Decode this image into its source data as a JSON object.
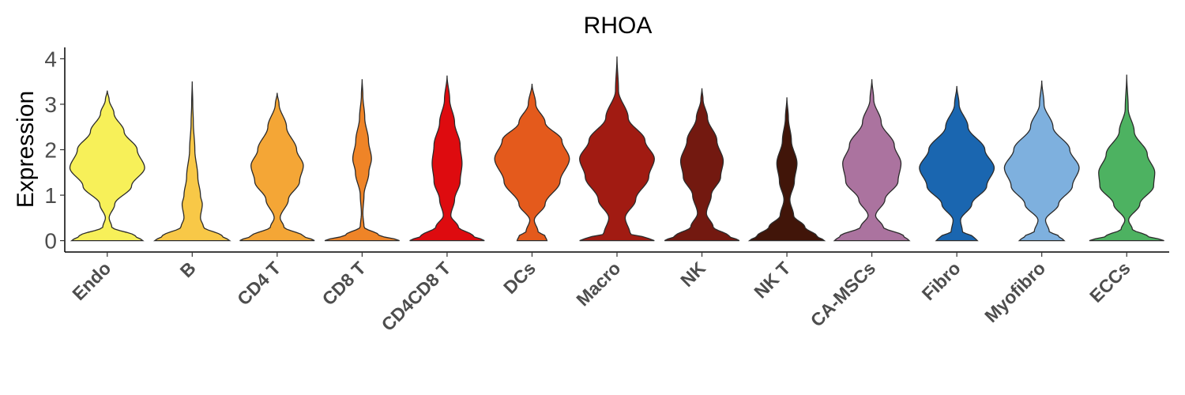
{
  "chart_data": {
    "type": "violin",
    "title": "RHOA",
    "xlabel": "",
    "ylabel": "Expression",
    "ylim": [
      -0.25,
      4.25
    ],
    "yticks": [
      0,
      1,
      2,
      3,
      4
    ],
    "grid": false,
    "legend": "none",
    "categories": [
      "Endo",
      "B",
      "CD4 T",
      "CD8 T",
      "CD4CD8 T",
      "DCs",
      "Macro",
      "NK",
      "NK T",
      "CA-MSCs",
      "Fibro",
      "Myofibro",
      "ECCs"
    ],
    "series": [
      {
        "category": "Endo",
        "color": "#f7f059",
        "ymax": 3.3,
        "profile": [
          [
            0,
            0.95
          ],
          [
            0.1,
            0.75
          ],
          [
            0.3,
            0.12
          ],
          [
            0.5,
            0.05
          ],
          [
            0.8,
            0.2
          ],
          [
            1.2,
            0.65
          ],
          [
            1.6,
            1.0
          ],
          [
            2.0,
            0.8
          ],
          [
            2.4,
            0.45
          ],
          [
            2.8,
            0.18
          ],
          [
            3.1,
            0.05
          ],
          [
            3.3,
            0
          ]
        ]
      },
      {
        "category": "B",
        "color": "#f8c847",
        "ymax": 3.5,
        "profile": [
          [
            0,
            1.0
          ],
          [
            0.1,
            0.8
          ],
          [
            0.3,
            0.3
          ],
          [
            0.5,
            0.22
          ],
          [
            0.8,
            0.27
          ],
          [
            1.0,
            0.22
          ],
          [
            1.4,
            0.15
          ],
          [
            2.0,
            0.07
          ],
          [
            2.6,
            0.03
          ],
          [
            3.0,
            0.015
          ],
          [
            3.5,
            0
          ]
        ]
      },
      {
        "category": "CD4 T",
        "color": "#f4a636",
        "ymax": 3.25,
        "profile": [
          [
            0,
            1.0
          ],
          [
            0.1,
            0.7
          ],
          [
            0.3,
            0.18
          ],
          [
            0.5,
            0.08
          ],
          [
            0.9,
            0.3
          ],
          [
            1.3,
            0.6
          ],
          [
            1.65,
            0.7
          ],
          [
            2.0,
            0.52
          ],
          [
            2.5,
            0.25
          ],
          [
            3.0,
            0.05
          ],
          [
            3.25,
            0
          ]
        ]
      },
      {
        "category": "CD8 T",
        "color": "#ef8427",
        "ymax": 3.55,
        "profile": [
          [
            0,
            1.0
          ],
          [
            0.12,
            0.45
          ],
          [
            0.3,
            0.05
          ],
          [
            0.6,
            0.02
          ],
          [
            1.0,
            0.05
          ],
          [
            1.5,
            0.18
          ],
          [
            1.8,
            0.25
          ],
          [
            2.2,
            0.17
          ],
          [
            2.7,
            0.07
          ],
          [
            3.2,
            0.02
          ],
          [
            3.55,
            0
          ]
        ]
      },
      {
        "category": "CD4CD8 T",
        "color": "#de0b0f",
        "ymax": 3.63,
        "profile": [
          [
            0,
            1.0
          ],
          [
            0.1,
            0.7
          ],
          [
            0.3,
            0.3
          ],
          [
            0.55,
            0.1
          ],
          [
            0.9,
            0.2
          ],
          [
            1.3,
            0.35
          ],
          [
            1.7,
            0.4
          ],
          [
            2.1,
            0.35
          ],
          [
            2.6,
            0.2
          ],
          [
            3.1,
            0.07
          ],
          [
            3.63,
            0
          ]
        ]
      },
      {
        "category": "DCs",
        "color": "#e45a1c",
        "ymax": 3.45,
        "profile": [
          [
            0,
            0.4
          ],
          [
            0.1,
            0.35
          ],
          [
            0.2,
            0.16
          ],
          [
            0.45,
            0.06
          ],
          [
            0.8,
            0.35
          ],
          [
            1.3,
            0.75
          ],
          [
            1.8,
            1.0
          ],
          [
            2.2,
            0.8
          ],
          [
            2.6,
            0.35
          ],
          [
            3.0,
            0.1
          ],
          [
            3.45,
            0
          ]
        ]
      },
      {
        "category": "Macro",
        "color": "#a11b12",
        "ymax": 4.05,
        "profile": [
          [
            0,
            1.0
          ],
          [
            0.05,
            0.85
          ],
          [
            0.15,
            0.35
          ],
          [
            0.5,
            0.22
          ],
          [
            0.9,
            0.5
          ],
          [
            1.4,
            0.85
          ],
          [
            1.8,
            1.0
          ],
          [
            2.2,
            0.75
          ],
          [
            2.7,
            0.3
          ],
          [
            3.3,
            0.04
          ],
          [
            4.05,
            0
          ]
        ]
      },
      {
        "category": "NK",
        "color": "#731910",
        "ymax": 3.35,
        "profile": [
          [
            0,
            1.0
          ],
          [
            0.1,
            0.72
          ],
          [
            0.3,
            0.3
          ],
          [
            0.6,
            0.12
          ],
          [
            1.0,
            0.25
          ],
          [
            1.4,
            0.5
          ],
          [
            1.75,
            0.57
          ],
          [
            2.2,
            0.4
          ],
          [
            2.7,
            0.15
          ],
          [
            3.1,
            0.03
          ],
          [
            3.35,
            0
          ]
        ]
      },
      {
        "category": "NK T",
        "color": "#411509",
        "ymax": 3.15,
        "profile": [
          [
            0,
            1.0
          ],
          [
            0.1,
            0.8
          ],
          [
            0.3,
            0.48
          ],
          [
            0.55,
            0.18
          ],
          [
            0.9,
            0.08
          ],
          [
            1.3,
            0.2
          ],
          [
            1.7,
            0.27
          ],
          [
            2.2,
            0.12
          ],
          [
            2.7,
            0.04
          ],
          [
            3.15,
            0
          ]
        ]
      },
      {
        "category": "CA-MSCs",
        "color": "#ab739f",
        "ymax": 3.55,
        "profile": [
          [
            0,
            1.0
          ],
          [
            0.1,
            0.85
          ],
          [
            0.3,
            0.3
          ],
          [
            0.55,
            0.1
          ],
          [
            0.9,
            0.35
          ],
          [
            1.3,
            0.7
          ],
          [
            1.7,
            0.78
          ],
          [
            2.1,
            0.6
          ],
          [
            2.6,
            0.25
          ],
          [
            3.1,
            0.05
          ],
          [
            3.55,
            0
          ]
        ]
      },
      {
        "category": "Fibro",
        "color": "#1a66b0",
        "ymax": 3.4,
        "profile": [
          [
            0,
            0.55
          ],
          [
            0.08,
            0.45
          ],
          [
            0.2,
            0.15
          ],
          [
            0.45,
            0.1
          ],
          [
            0.8,
            0.4
          ],
          [
            1.2,
            0.8
          ],
          [
            1.6,
            1.0
          ],
          [
            2.0,
            0.75
          ],
          [
            2.5,
            0.3
          ],
          [
            3.0,
            0.06
          ],
          [
            3.4,
            0
          ]
        ]
      },
      {
        "category": "Myofibro",
        "color": "#7eb0de",
        "ymax": 3.52,
        "profile": [
          [
            0,
            0.6
          ],
          [
            0.1,
            0.45
          ],
          [
            0.2,
            0.2
          ],
          [
            0.45,
            0.1
          ],
          [
            0.8,
            0.45
          ],
          [
            1.2,
            0.82
          ],
          [
            1.6,
            1.0
          ],
          [
            2.0,
            0.75
          ],
          [
            2.5,
            0.3
          ],
          [
            3.0,
            0.06
          ],
          [
            3.52,
            0
          ]
        ]
      },
      {
        "category": "ECCs",
        "color": "#4db261",
        "ymax": 3.65,
        "profile": [
          [
            0,
            1.0
          ],
          [
            0.1,
            0.55
          ],
          [
            0.25,
            0.15
          ],
          [
            0.45,
            0.05
          ],
          [
            0.8,
            0.35
          ],
          [
            1.2,
            0.72
          ],
          [
            1.5,
            0.75
          ],
          [
            1.9,
            0.55
          ],
          [
            2.4,
            0.2
          ],
          [
            2.9,
            0.04
          ],
          [
            3.65,
            0
          ]
        ]
      }
    ]
  }
}
